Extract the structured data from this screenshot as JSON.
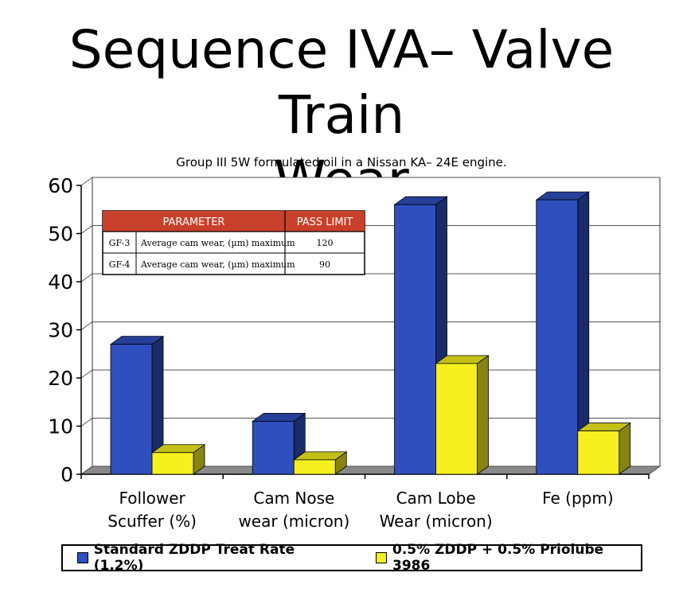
{
  "title_lines": [
    "Sequence IVA– Valve Train",
    "Wear"
  ],
  "chart_data": {
    "type": "bar",
    "title": "Group III 5W formulated oil in a Nissan KA– 24E engine.",
    "categories": [
      [
        "Follower",
        "Scuffer (%)"
      ],
      [
        "Cam Nose",
        "wear (micron)"
      ],
      [
        "Cam Lobe",
        "Wear (micron)"
      ],
      [
        "Fe (ppm)"
      ]
    ],
    "series": [
      {
        "name": "Standard ZDDP Treat Rate (1.2%)",
        "values": [
          27,
          11,
          56,
          57
        ],
        "color": "#2f4fbf"
      },
      {
        "name": "0.5% ZDDP + 0.5% Priolube 3986",
        "values": [
          4.5,
          3,
          23,
          9
        ],
        "color": "#f5f01e"
      }
    ],
    "ylim": [
      0,
      60
    ],
    "yticks": [
      0,
      10,
      20,
      30,
      40,
      50,
      60
    ],
    "grid": true,
    "legend_position": "bottom",
    "inset_table": {
      "headers": [
        "PARAMETER",
        "PASS LIMIT"
      ],
      "rows": [
        [
          "GF-3",
          "Average cam wear, (µm) maximum",
          "120"
        ],
        [
          "GF-4",
          "Average cam wear, (µm) maximum",
          "90"
        ]
      ],
      "header_color": "#c9402a"
    }
  }
}
